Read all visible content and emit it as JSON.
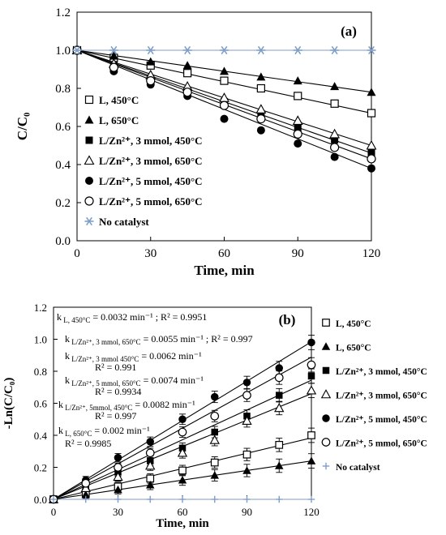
{
  "chart_data": [
    {
      "type": "scatter",
      "panel_label": "(a)",
      "xlabel": "Time, min",
      "ylabel": "C/C₀",
      "xlim": [
        0,
        120
      ],
      "ylim": [
        0,
        1.2
      ],
      "xticks": [
        "0",
        "30",
        "60",
        "90",
        "120"
      ],
      "yticks": [
        "0.0",
        "0.2",
        "0.4",
        "0.6",
        "0.8",
        "1.0",
        "1.2"
      ],
      "grid": false,
      "legend_position": "left",
      "x": [
        0,
        15,
        30,
        45,
        60,
        75,
        90,
        105,
        120
      ],
      "series": [
        {
          "name": "L, 450°C",
          "marker": "square-open",
          "values": [
            1.0,
            0.96,
            0.92,
            0.88,
            0.84,
            0.8,
            0.76,
            0.72,
            0.67
          ],
          "fit": [
            1.0,
            0.67
          ]
        },
        {
          "name": "L, 650°C",
          "marker": "triangle-filled",
          "values": [
            1.0,
            0.97,
            0.94,
            0.92,
            0.89,
            0.86,
            0.84,
            0.81,
            0.78
          ],
          "fit": [
            1.0,
            0.78
          ]
        },
        {
          "name": "L/Zn²⁺, 3 mmol, 450°C",
          "marker": "square-filled",
          "values": [
            1.0,
            0.92,
            0.85,
            0.79,
            0.73,
            0.66,
            0.59,
            0.53,
            0.46
          ],
          "fit": [
            1.0,
            0.46
          ]
        },
        {
          "name": "L/Zn²⁺, 3 mmol, 650°C",
          "marker": "triangle-open",
          "values": [
            1.0,
            0.93,
            0.87,
            0.81,
            0.75,
            0.69,
            0.63,
            0.56,
            0.5
          ],
          "fit": [
            1.0,
            0.5
          ]
        },
        {
          "name": "L/Zn²⁺, 5 mmol, 450°C",
          "marker": "circle-filled",
          "values": [
            1.0,
            0.89,
            0.82,
            0.76,
            0.64,
            0.58,
            0.51,
            0.44,
            0.38
          ],
          "fit": [
            1.0,
            0.38
          ]
        },
        {
          "name": "L/Zn²⁺, 5 mmol, 650°C",
          "marker": "circle-open",
          "values": [
            1.0,
            0.91,
            0.84,
            0.78,
            0.71,
            0.64,
            0.56,
            0.49,
            0.43
          ],
          "fit": [
            1.0,
            0.43
          ]
        },
        {
          "name": "No catalyst",
          "marker": "asterisk",
          "values": [
            1.0,
            1.0,
            1.0,
            1.0,
            1.0,
            1.0,
            1.0,
            1.0,
            1.0
          ],
          "fit": [
            1.0,
            1.0
          ]
        }
      ]
    },
    {
      "type": "scatter",
      "panel_label": "(b)",
      "xlabel": "Time, min",
      "ylabel": "-Ln(C/C₀)",
      "xlim": [
        0,
        120
      ],
      "ylim": [
        0,
        1.2
      ],
      "xticks": [
        "0",
        "30",
        "60",
        "90",
        "120"
      ],
      "yticks": [
        "0.0",
        "0.2",
        "0.4",
        "0.6",
        "0.8",
        "1.0",
        "1.2"
      ],
      "grid": false,
      "legend_position": "right",
      "x": [
        0,
        15,
        30,
        45,
        60,
        75,
        90,
        105,
        120
      ],
      "error_bars": true,
      "series": [
        {
          "name": "L, 450°C",
          "marker": "square-open",
          "values": [
            0,
            0.04,
            0.08,
            0.13,
            0.18,
            0.23,
            0.28,
            0.34,
            0.4
          ],
          "fit": [
            0,
            0.384
          ]
        },
        {
          "name": "L, 650°C",
          "marker": "triangle-filled",
          "values": [
            0,
            0.03,
            0.06,
            0.09,
            0.12,
            0.15,
            0.18,
            0.21,
            0.24
          ],
          "fit": [
            0,
            0.24
          ]
        },
        {
          "name": "L/Zn²⁺, 3 mmol, 450°C",
          "marker": "square-filled",
          "values": [
            0,
            0.08,
            0.17,
            0.24,
            0.32,
            0.42,
            0.52,
            0.65,
            0.77
          ],
          "fit": [
            0,
            0.744
          ]
        },
        {
          "name": "L/Zn²⁺, 3 mmol, 650°C",
          "marker": "triangle-open",
          "values": [
            0,
            0.07,
            0.14,
            0.21,
            0.29,
            0.37,
            0.49,
            0.57,
            0.68
          ],
          "fit": [
            0,
            0.66
          ]
        },
        {
          "name": "L/Zn²⁺, 5 mmol, 450°C",
          "marker": "circle-filled",
          "values": [
            0,
            0.12,
            0.26,
            0.36,
            0.5,
            0.64,
            0.73,
            0.82,
            0.98
          ],
          "fit": [
            0,
            0.984
          ]
        },
        {
          "name": "L/Zn²⁺, 5 mmol, 650°C",
          "marker": "circle-open",
          "values": [
            0,
            0.1,
            0.2,
            0.29,
            0.42,
            0.52,
            0.65,
            0.76,
            0.84
          ],
          "fit": [
            0,
            0.888
          ]
        },
        {
          "name": "No catalyst",
          "marker": "plus",
          "values": [
            0,
            0,
            0,
            0,
            0,
            0,
            0,
            0,
            0
          ],
          "fit": [
            0,
            0
          ]
        }
      ],
      "annotations": [
        {
          "main": "k",
          "sub": "L, 450°C",
          "rest": " = 0.0032 min⁻¹ ; R² = 0.9951"
        },
        {
          "main": "k",
          "sub": "L/Zn²⁺, 3 mmol, 650°C",
          "rest": " = 0.0055 min⁻¹ ; R² = 0.997"
        },
        {
          "main": "k",
          "sub": "L/Zn²⁺, 3 mmol 450°C",
          "rest": " = 0.0062 min⁻¹"
        },
        {
          "main": "R² = 0.991",
          "sub": "",
          "rest": ""
        },
        {
          "main": "k",
          "sub": "L/Zn²⁺, 5 mmol, 650°C",
          "rest": " = 0.0074 min⁻¹"
        },
        {
          "main": "R² = 0.9934",
          "sub": "",
          "rest": ""
        },
        {
          "main": "k",
          "sub": "L/Zn²⁺, 5mmol, 450°C",
          "rest": " = 0.0082 min⁻¹"
        },
        {
          "main": "R² = 0.997",
          "sub": "",
          "rest": ""
        },
        {
          "main": "k",
          "sub": "L, 650°C",
          "rest": " = 0.002 min⁻¹"
        },
        {
          "main": "R² = 0.9985",
          "sub": "",
          "rest": ""
        }
      ]
    }
  ]
}
